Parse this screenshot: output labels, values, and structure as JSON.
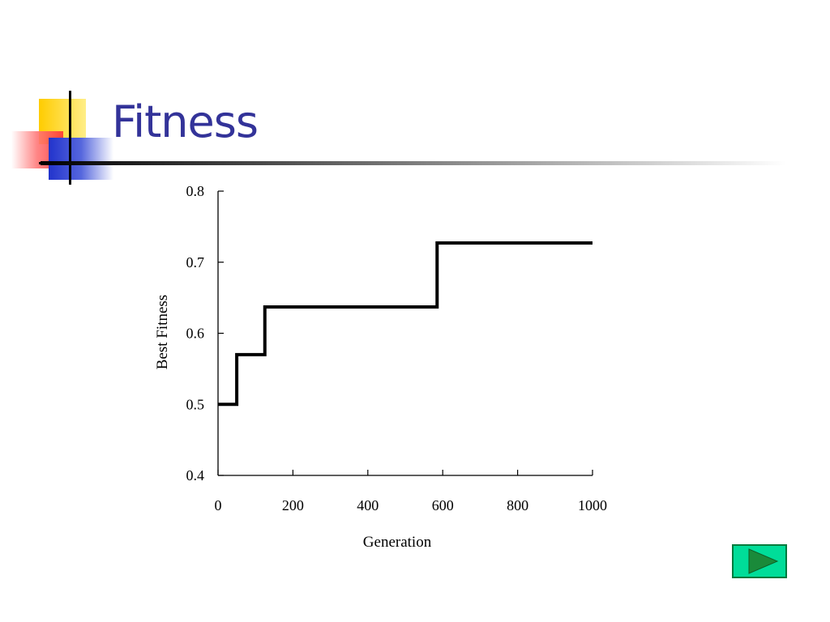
{
  "slide": {
    "title": "Fitness"
  },
  "nav": {
    "next_icon": "play-triangle-icon",
    "colors": {
      "fill": "#00dd99",
      "border": "#007a3d",
      "arrow": "#1a8a3a"
    }
  },
  "chart_data": {
    "type": "line",
    "title": "",
    "xlabel": "Generation",
    "ylabel": "Best Fitness",
    "xlim": [
      0,
      1000
    ],
    "ylim": [
      0.4,
      0.8
    ],
    "xticks": [
      0,
      200,
      400,
      600,
      800,
      1000
    ],
    "yticks": [
      0.4,
      0.5,
      0.6,
      0.7,
      0.8
    ],
    "xtick_labels": [
      "0",
      "200",
      "400",
      "600",
      "800",
      "1000"
    ],
    "ytick_labels": [
      "0.4",
      "0.5",
      "0.6",
      "0.7",
      "0.8"
    ],
    "grid": false,
    "legend": "none",
    "series": [
      {
        "step": "post",
        "color": "#000000",
        "x": [
          0,
          50,
          125,
          585,
          1000
        ],
        "y": [
          0.5,
          0.57,
          0.637,
          0.727,
          0.727
        ]
      }
    ]
  }
}
